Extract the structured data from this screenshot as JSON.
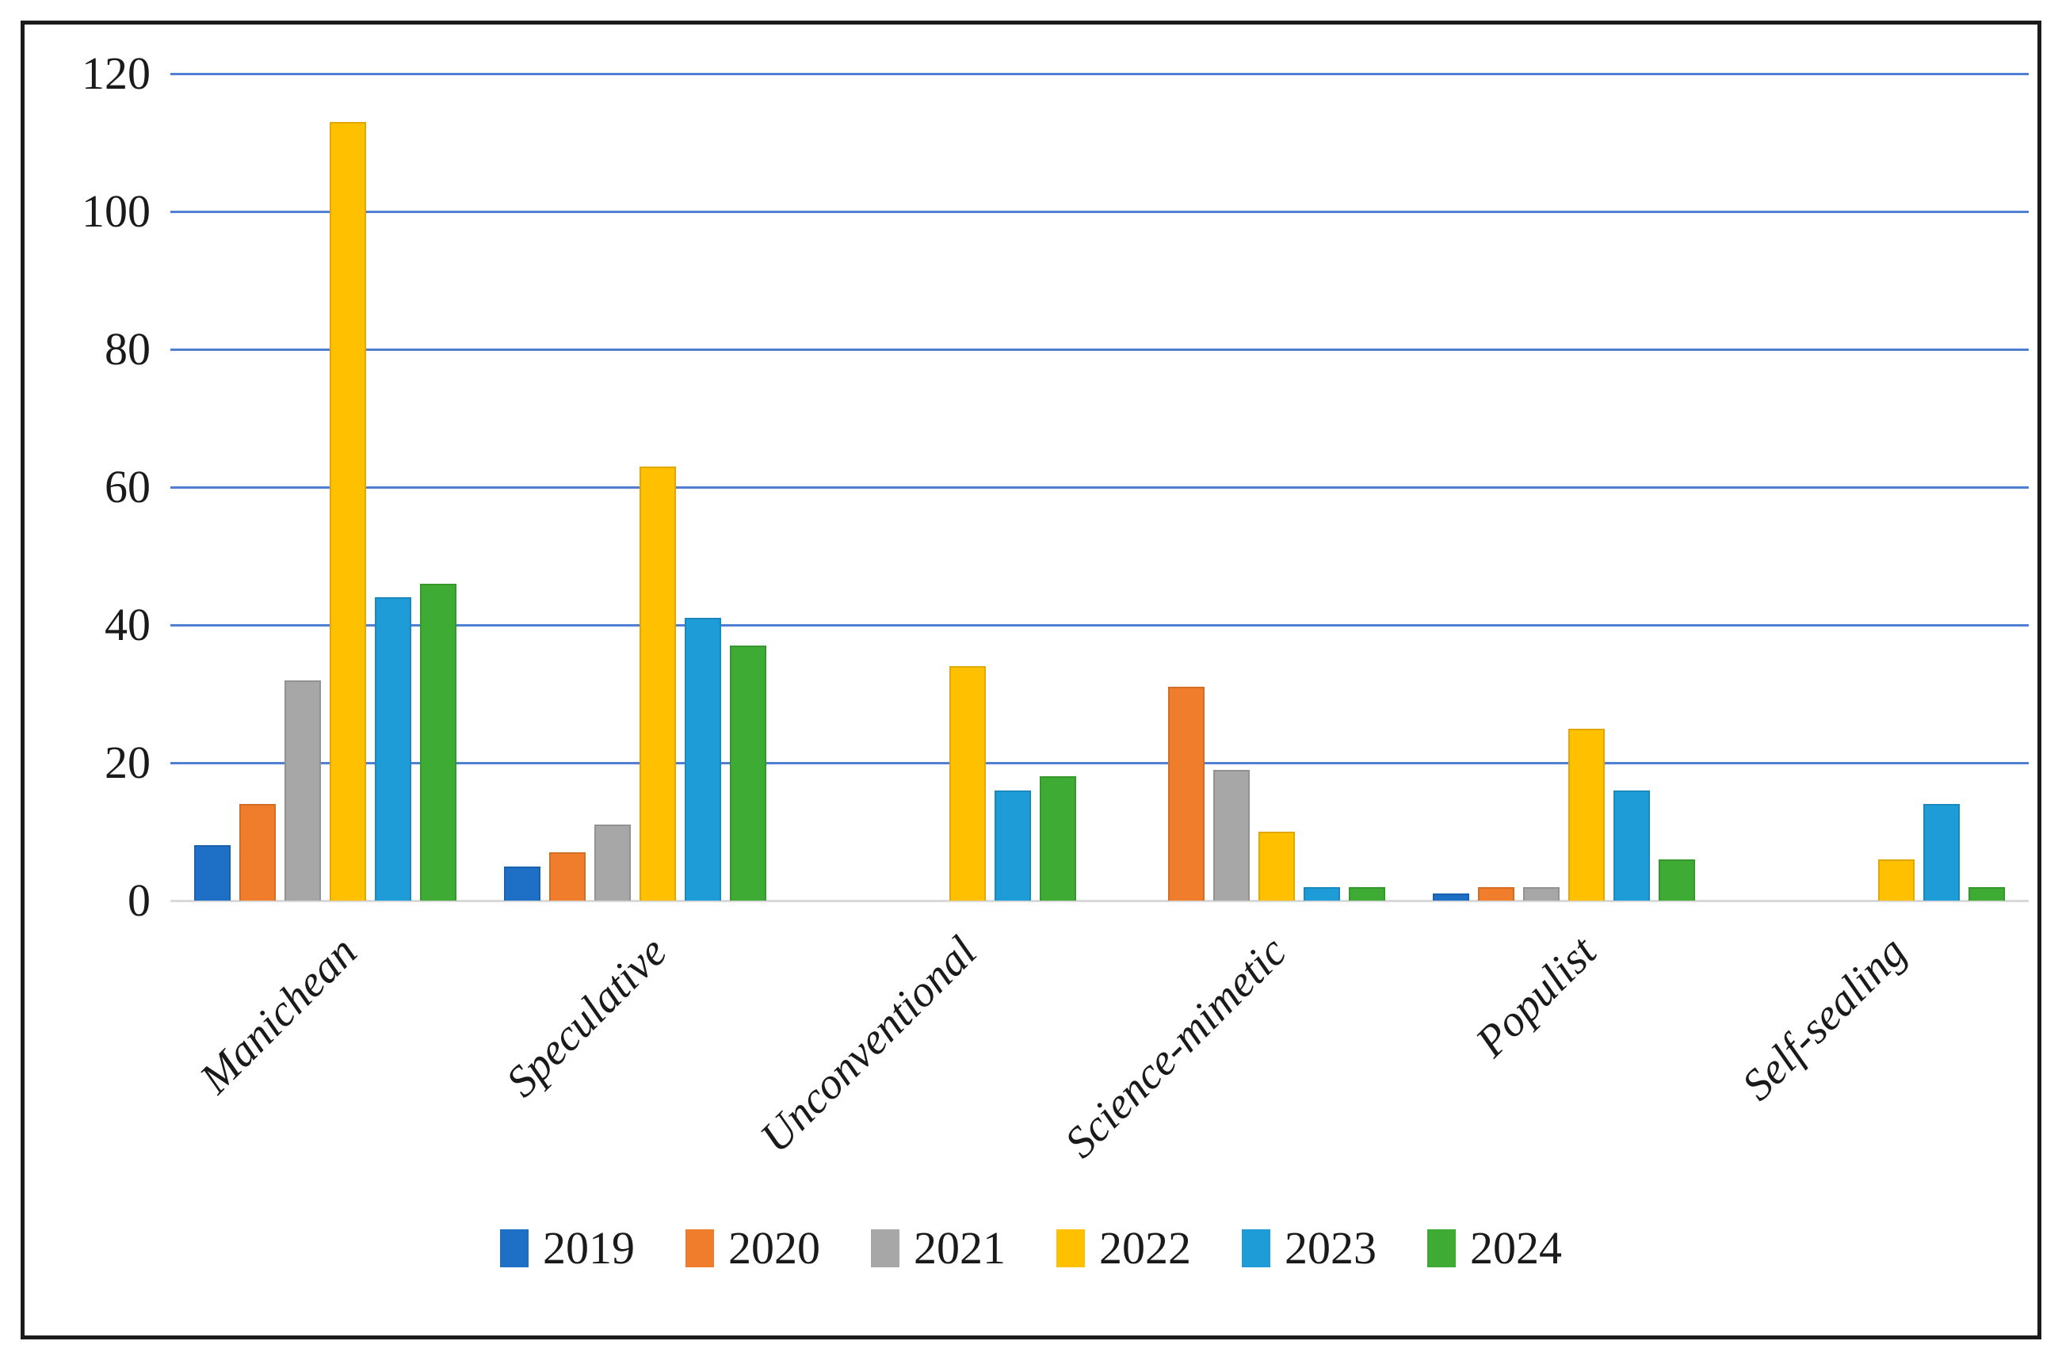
{
  "figure": {
    "background": "#ffffff",
    "frame_border_color": "#1c1c1c"
  },
  "chart_data": {
    "type": "bar",
    "title": "",
    "xlabel": "",
    "ylabel": "",
    "categories": [
      "Manichean",
      "Speculative",
      "Unconventional",
      "Science-mimetic",
      "Populist",
      "Self-sealing"
    ],
    "series": [
      {
        "name": "2019",
        "color": "#1E6FC6",
        "values": [
          8,
          5,
          0,
          0,
          1,
          0
        ]
      },
      {
        "name": "2020",
        "color": "#F07D2B",
        "values": [
          14,
          7,
          0,
          31,
          2,
          0
        ]
      },
      {
        "name": "2021",
        "color": "#A7A7A7",
        "values": [
          32,
          11,
          0,
          19,
          2,
          0
        ]
      },
      {
        "name": "2022",
        "color": "#FFC000",
        "values": [
          113,
          63,
          34,
          10,
          25,
          6
        ]
      },
      {
        "name": "2023",
        "color": "#1E9CD8",
        "values": [
          44,
          41,
          16,
          2,
          16,
          14
        ]
      },
      {
        "name": "2024",
        "color": "#3EAC34",
        "values": [
          46,
          37,
          18,
          2,
          6,
          2
        ]
      }
    ],
    "ylim": [
      0,
      120
    ],
    "yticks": [
      0,
      20,
      40,
      60,
      80,
      100,
      120
    ],
    "grid": "horizontal",
    "gridline_color": "#517FD3",
    "baseline_color": "#D9D9D9",
    "legend_position": "bottom"
  }
}
